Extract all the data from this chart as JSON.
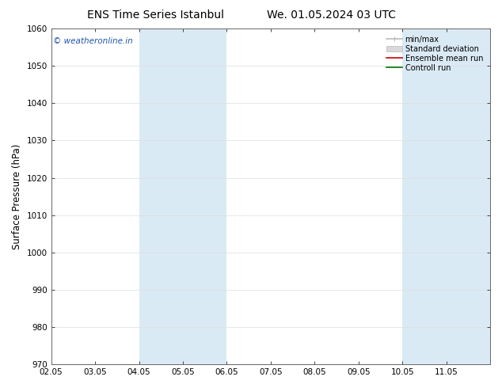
{
  "title_left": "ENS Time Series Istanbul",
  "title_right": "We. 01.05.2024 03 UTC",
  "ylabel": "Surface Pressure (hPa)",
  "ylim": [
    970,
    1060
  ],
  "yticks": [
    970,
    980,
    990,
    1000,
    1010,
    1020,
    1030,
    1040,
    1050,
    1060
  ],
  "xlim": [
    0,
    10
  ],
  "xtick_labels": [
    "02.05",
    "03.05",
    "04.05",
    "05.05",
    "06.05",
    "07.05",
    "08.05",
    "09.05",
    "10.05",
    "11.05"
  ],
  "xtick_positions": [
    0,
    1,
    2,
    3,
    4,
    5,
    6,
    7,
    8,
    9
  ],
  "shaded_bands": [
    {
      "xmin": 2,
      "xmax": 3,
      "color": "#daeaf5"
    },
    {
      "xmin": 3,
      "xmax": 4,
      "color": "#daeaf5"
    },
    {
      "xmin": 8,
      "xmax": 9,
      "color": "#daeaf5"
    },
    {
      "xmin": 9,
      "xmax": 10,
      "color": "#daeaf5"
    }
  ],
  "watermark": "© weatheronline.in",
  "watermark_color": "#2255aa",
  "legend_labels": [
    "min/max",
    "Standard deviation",
    "Ensemble mean run",
    "Controll run"
  ],
  "legend_line_color": "#bbbbbb",
  "legend_band_color": "#cccccc",
  "legend_mean_color": "#cc0000",
  "legend_ctrl_color": "#007700",
  "background_color": "#ffffff",
  "plot_bg_color": "#ffffff",
  "grid_color": "#dddddd",
  "title_fontsize": 10,
  "tick_fontsize": 7.5,
  "ylabel_fontsize": 8.5,
  "watermark_fontsize": 7.5,
  "legend_fontsize": 7
}
